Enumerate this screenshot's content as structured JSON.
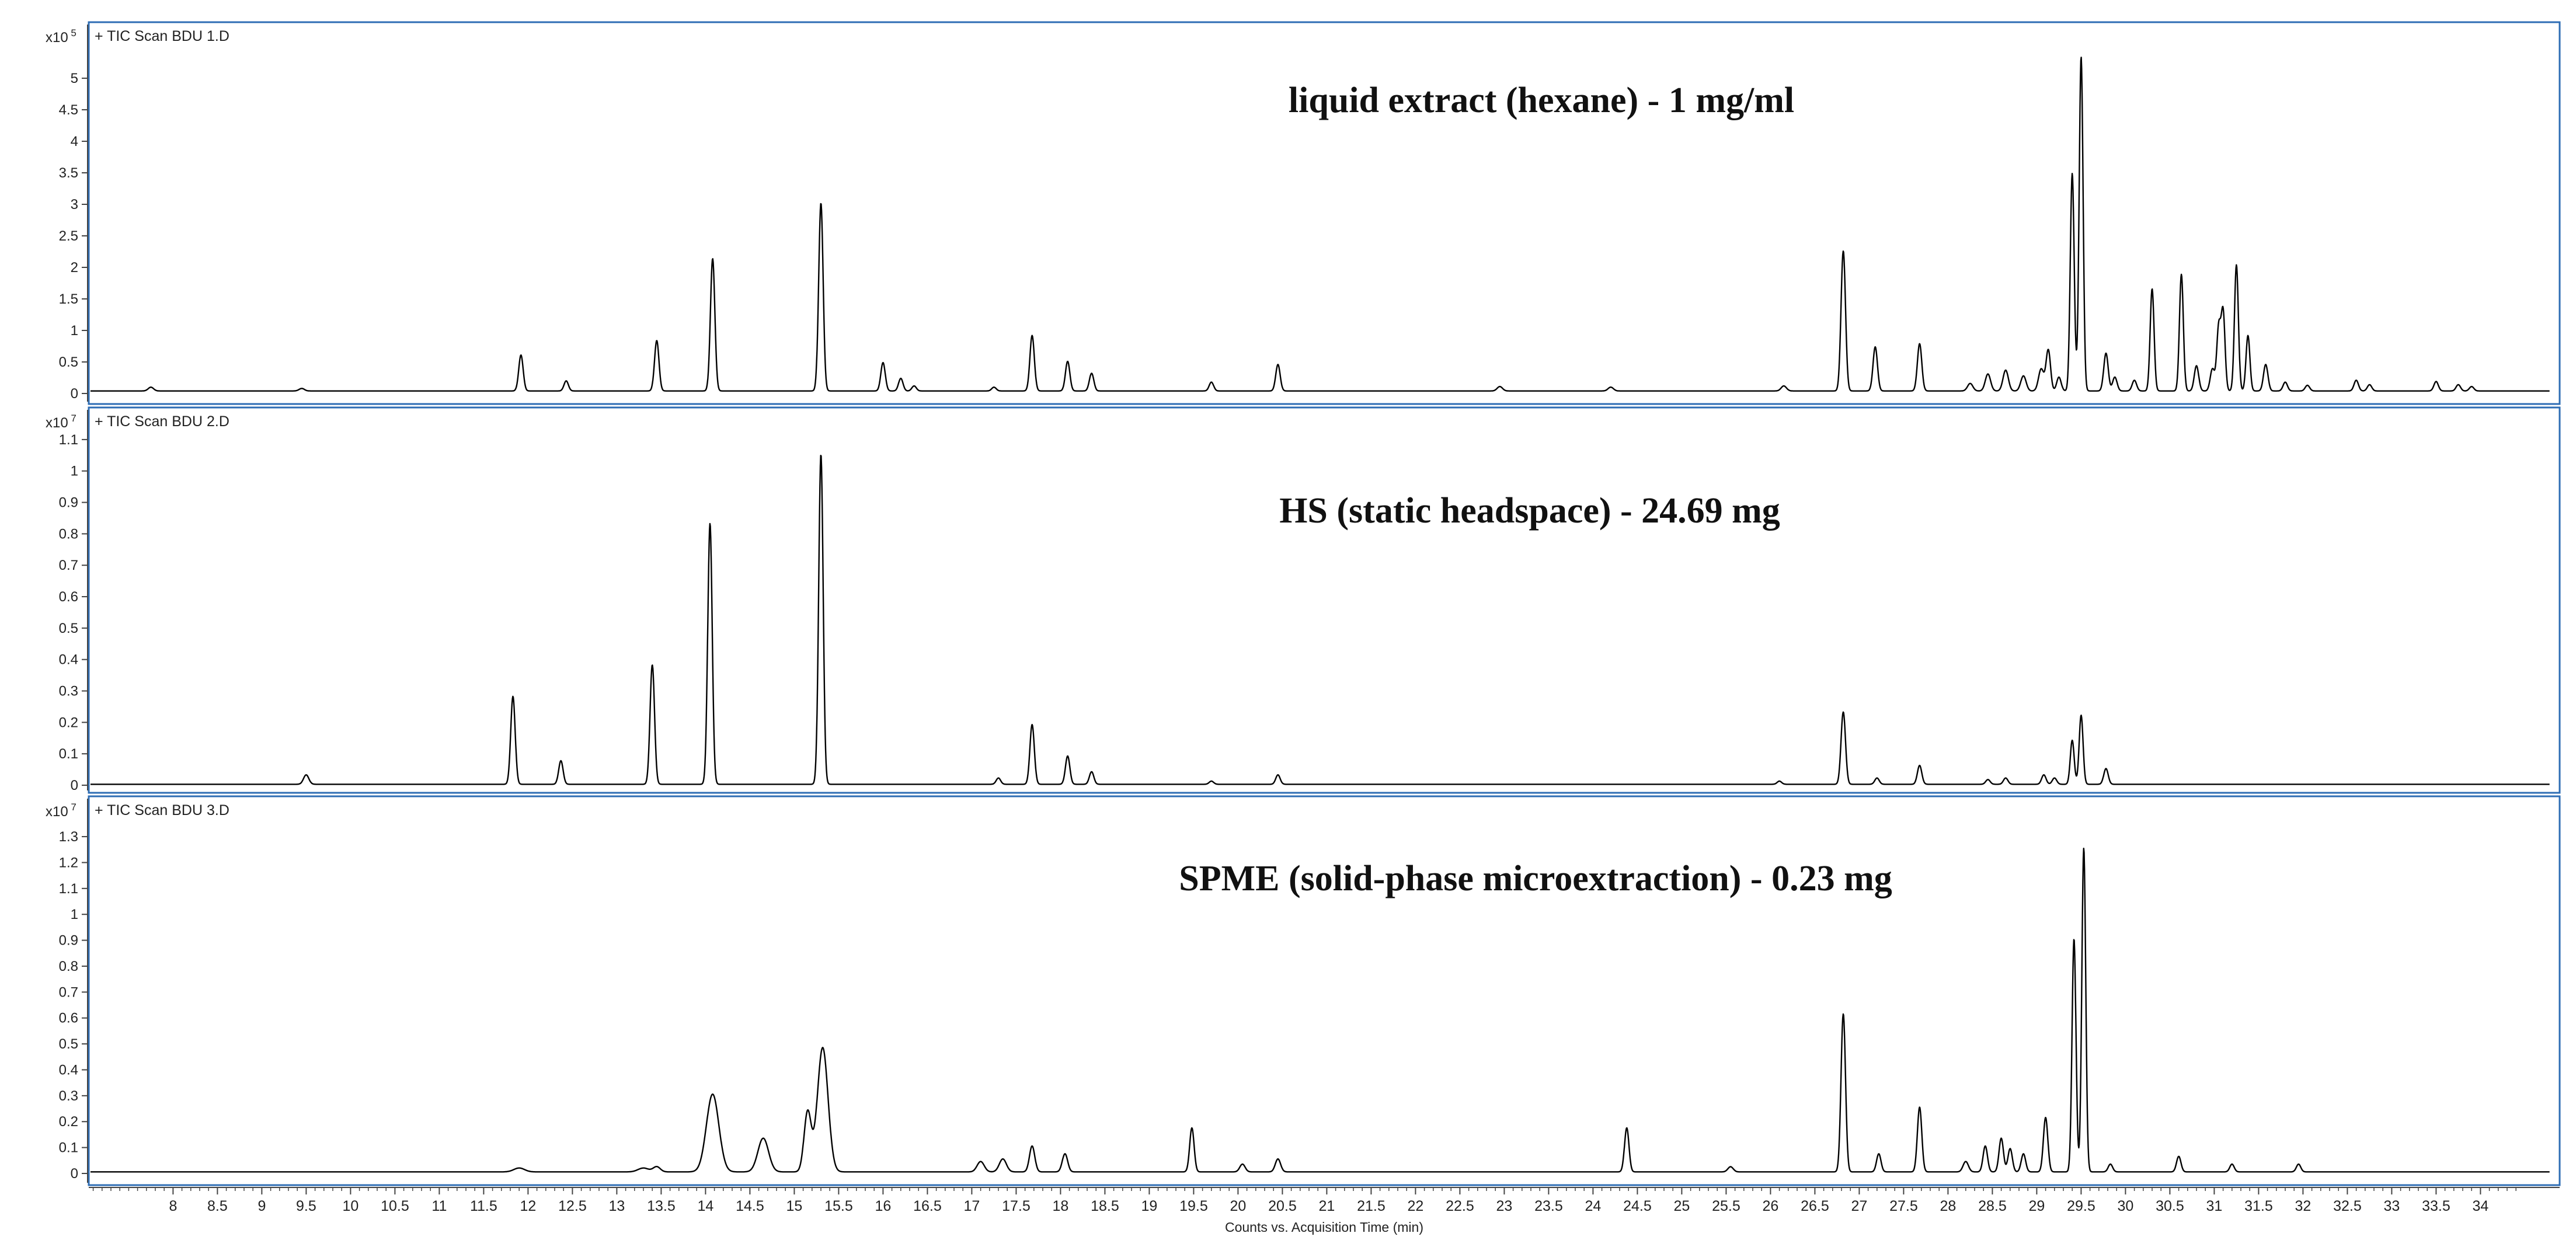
{
  "chart_data": [
    {
      "type": "line",
      "panel_label": "+ TIC Scan BDU 1.D",
      "multiplier": "x10",
      "multiplier_exp": "5",
      "annotation": "liquid extract (hexane) - 1 mg/ml",
      "ylim": [
        0,
        5.5
      ],
      "yticks": [
        "0",
        "0.5",
        "1",
        "1.5",
        "2",
        "2.5",
        "3",
        "3.5",
        "4",
        "4.5",
        "5"
      ],
      "baseline": 0.04,
      "peaks": [
        {
          "x": 7.75,
          "y": 0.06,
          "w": 0.03
        },
        {
          "x": 9.45,
          "y": 0.04,
          "w": 0.03
        },
        {
          "x": 11.92,
          "y": 0.57,
          "w": 0.025
        },
        {
          "x": 12.43,
          "y": 0.16,
          "w": 0.025
        },
        {
          "x": 13.45,
          "y": 0.8,
          "w": 0.025
        },
        {
          "x": 14.08,
          "y": 2.1,
          "w": 0.025
        },
        {
          "x": 15.3,
          "y": 2.98,
          "w": 0.025
        },
        {
          "x": 16.0,
          "y": 0.45,
          "w": 0.025
        },
        {
          "x": 16.2,
          "y": 0.2,
          "w": 0.025
        },
        {
          "x": 16.35,
          "y": 0.08,
          "w": 0.025
        },
        {
          "x": 17.25,
          "y": 0.06,
          "w": 0.025
        },
        {
          "x": 17.68,
          "y": 0.88,
          "w": 0.025
        },
        {
          "x": 18.08,
          "y": 0.47,
          "w": 0.025
        },
        {
          "x": 18.35,
          "y": 0.28,
          "w": 0.025
        },
        {
          "x": 19.7,
          "y": 0.14,
          "w": 0.025
        },
        {
          "x": 20.45,
          "y": 0.42,
          "w": 0.025
        },
        {
          "x": 22.95,
          "y": 0.07,
          "w": 0.03
        },
        {
          "x": 24.2,
          "y": 0.06,
          "w": 0.03
        },
        {
          "x": 26.15,
          "y": 0.08,
          "w": 0.03
        },
        {
          "x": 26.82,
          "y": 2.22,
          "w": 0.025
        },
        {
          "x": 27.18,
          "y": 0.7,
          "w": 0.025
        },
        {
          "x": 27.68,
          "y": 0.75,
          "w": 0.025
        },
        {
          "x": 28.25,
          "y": 0.12,
          "w": 0.03
        },
        {
          "x": 28.45,
          "y": 0.27,
          "w": 0.03
        },
        {
          "x": 28.65,
          "y": 0.33,
          "w": 0.03
        },
        {
          "x": 28.85,
          "y": 0.24,
          "w": 0.03
        },
        {
          "x": 29.05,
          "y": 0.35,
          "w": 0.03
        },
        {
          "x": 29.13,
          "y": 0.65,
          "w": 0.025
        },
        {
          "x": 29.25,
          "y": 0.22,
          "w": 0.025
        },
        {
          "x": 29.4,
          "y": 3.45,
          "w": 0.022
        },
        {
          "x": 29.5,
          "y": 5.3,
          "w": 0.022
        },
        {
          "x": 29.78,
          "y": 0.6,
          "w": 0.025
        },
        {
          "x": 29.88,
          "y": 0.22,
          "w": 0.025
        },
        {
          "x": 30.1,
          "y": 0.17,
          "w": 0.025
        },
        {
          "x": 30.3,
          "y": 1.62,
          "w": 0.022
        },
        {
          "x": 30.63,
          "y": 1.85,
          "w": 0.022
        },
        {
          "x": 30.8,
          "y": 0.4,
          "w": 0.025
        },
        {
          "x": 30.98,
          "y": 0.35,
          "w": 0.025
        },
        {
          "x": 31.05,
          "y": 1.0,
          "w": 0.022
        },
        {
          "x": 31.1,
          "y": 1.25,
          "w": 0.022
        },
        {
          "x": 31.25,
          "y": 2.0,
          "w": 0.022
        },
        {
          "x": 31.38,
          "y": 0.88,
          "w": 0.022
        },
        {
          "x": 31.58,
          "y": 0.42,
          "w": 0.025
        },
        {
          "x": 31.8,
          "y": 0.14,
          "w": 0.025
        },
        {
          "x": 32.05,
          "y": 0.09,
          "w": 0.025
        },
        {
          "x": 32.6,
          "y": 0.17,
          "w": 0.025
        },
        {
          "x": 32.75,
          "y": 0.1,
          "w": 0.025
        },
        {
          "x": 33.5,
          "y": 0.15,
          "w": 0.025
        },
        {
          "x": 33.75,
          "y": 0.1,
          "w": 0.025
        },
        {
          "x": 33.9,
          "y": 0.07,
          "w": 0.025
        }
      ]
    },
    {
      "type": "line",
      "panel_label": "+ TIC Scan BDU 2.D",
      "multiplier": "x10",
      "multiplier_exp": "7",
      "annotation": "HS (static headspace) - 24.69 mg",
      "ylim": [
        0,
        1.15
      ],
      "yticks": [
        "0",
        "0.1",
        "0.2",
        "0.3",
        "0.4",
        "0.5",
        "0.6",
        "0.7",
        "0.8",
        "0.9",
        "1",
        "1.1"
      ],
      "baseline": 0.003,
      "peaks": [
        {
          "x": 9.5,
          "y": 0.03,
          "w": 0.03
        },
        {
          "x": 11.83,
          "y": 0.28,
          "w": 0.025
        },
        {
          "x": 12.37,
          "y": 0.075,
          "w": 0.025
        },
        {
          "x": 13.4,
          "y": 0.38,
          "w": 0.025
        },
        {
          "x": 14.05,
          "y": 0.83,
          "w": 0.025
        },
        {
          "x": 15.3,
          "y": 1.05,
          "w": 0.025
        },
        {
          "x": 17.3,
          "y": 0.02,
          "w": 0.025
        },
        {
          "x": 17.68,
          "y": 0.19,
          "w": 0.025
        },
        {
          "x": 18.08,
          "y": 0.09,
          "w": 0.025
        },
        {
          "x": 18.35,
          "y": 0.04,
          "w": 0.025
        },
        {
          "x": 19.7,
          "y": 0.01,
          "w": 0.025
        },
        {
          "x": 20.45,
          "y": 0.03,
          "w": 0.025
        },
        {
          "x": 26.1,
          "y": 0.01,
          "w": 0.025
        },
        {
          "x": 26.82,
          "y": 0.23,
          "w": 0.025
        },
        {
          "x": 27.2,
          "y": 0.02,
          "w": 0.025
        },
        {
          "x": 27.68,
          "y": 0.06,
          "w": 0.025
        },
        {
          "x": 28.45,
          "y": 0.015,
          "w": 0.025
        },
        {
          "x": 28.65,
          "y": 0.02,
          "w": 0.025
        },
        {
          "x": 29.08,
          "y": 0.03,
          "w": 0.025
        },
        {
          "x": 29.2,
          "y": 0.02,
          "w": 0.025
        },
        {
          "x": 29.4,
          "y": 0.14,
          "w": 0.022
        },
        {
          "x": 29.5,
          "y": 0.22,
          "w": 0.022
        },
        {
          "x": 29.78,
          "y": 0.05,
          "w": 0.025
        }
      ]
    },
    {
      "type": "line",
      "panel_label": "+ TIC Scan BDU 3.D",
      "multiplier": "x10",
      "multiplier_exp": "7",
      "annotation": "SPME (solid-phase microextraction) - 0.23 mg",
      "ylim": [
        0,
        1.37
      ],
      "yticks": [
        "0",
        "0.1",
        "0.2",
        "0.3",
        "0.4",
        "0.5",
        "0.6",
        "0.7",
        "0.8",
        "0.9",
        "1",
        "1.1",
        "1.2",
        "1.3"
      ],
      "baseline": 0.006,
      "peaks": [
        {
          "x": 11.9,
          "y": 0.015,
          "w": 0.06
        },
        {
          "x": 13.3,
          "y": 0.015,
          "w": 0.06
        },
        {
          "x": 13.45,
          "y": 0.02,
          "w": 0.04
        },
        {
          "x": 14.08,
          "y": 0.3,
          "w": 0.07
        },
        {
          "x": 14.65,
          "y": 0.13,
          "w": 0.06
        },
        {
          "x": 15.15,
          "y": 0.23,
          "w": 0.04
        },
        {
          "x": 15.32,
          "y": 0.48,
          "w": 0.06
        },
        {
          "x": 17.1,
          "y": 0.04,
          "w": 0.04
        },
        {
          "x": 17.35,
          "y": 0.05,
          "w": 0.04
        },
        {
          "x": 17.68,
          "y": 0.1,
          "w": 0.03
        },
        {
          "x": 18.05,
          "y": 0.07,
          "w": 0.03
        },
        {
          "x": 19.48,
          "y": 0.17,
          "w": 0.025
        },
        {
          "x": 20.05,
          "y": 0.03,
          "w": 0.03
        },
        {
          "x": 20.45,
          "y": 0.05,
          "w": 0.03
        },
        {
          "x": 24.38,
          "y": 0.17,
          "w": 0.025
        },
        {
          "x": 25.55,
          "y": 0.02,
          "w": 0.03
        },
        {
          "x": 26.82,
          "y": 0.61,
          "w": 0.025
        },
        {
          "x": 27.22,
          "y": 0.07,
          "w": 0.025
        },
        {
          "x": 27.68,
          "y": 0.25,
          "w": 0.025
        },
        {
          "x": 28.2,
          "y": 0.04,
          "w": 0.03
        },
        {
          "x": 28.42,
          "y": 0.1,
          "w": 0.025
        },
        {
          "x": 28.6,
          "y": 0.13,
          "w": 0.025
        },
        {
          "x": 28.7,
          "y": 0.09,
          "w": 0.025
        },
        {
          "x": 28.85,
          "y": 0.07,
          "w": 0.025
        },
        {
          "x": 29.1,
          "y": 0.21,
          "w": 0.025
        },
        {
          "x": 29.42,
          "y": 0.9,
          "w": 0.022
        },
        {
          "x": 29.53,
          "y": 1.25,
          "w": 0.022
        },
        {
          "x": 29.83,
          "y": 0.03,
          "w": 0.025
        },
        {
          "x": 30.6,
          "y": 0.06,
          "w": 0.025
        },
        {
          "x": 31.2,
          "y": 0.03,
          "w": 0.025
        },
        {
          "x": 31.95,
          "y": 0.03,
          "w": 0.025
        }
      ]
    }
  ],
  "x_axis": {
    "label": "Counts vs. Acquisition Time (min)",
    "xlim": [
      7.05,
      34.8
    ],
    "ticks": [
      "8",
      "8.5",
      "9",
      "9.5",
      "10",
      "10.5",
      "11",
      "11.5",
      "12",
      "12.5",
      "13",
      "13.5",
      "14",
      "14.5",
      "15",
      "15.5",
      "16",
      "16.5",
      "17",
      "17.5",
      "18",
      "18.5",
      "19",
      "19.5",
      "20",
      "20.5",
      "21",
      "21.5",
      "22",
      "22.5",
      "23",
      "23.5",
      "24",
      "24.5",
      "25",
      "25.5",
      "26",
      "26.5",
      "27",
      "27.5",
      "28",
      "28.5",
      "29",
      "29.5",
      "30",
      "30.5",
      "31",
      "31.5",
      "32",
      "32.5",
      "33",
      "33.5",
      "34"
    ]
  },
  "colors": {
    "trace": "#000000",
    "frame": "#2e6db4",
    "axis": "#444444"
  }
}
